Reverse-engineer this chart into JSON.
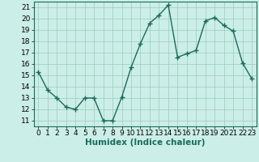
{
  "x": [
    0,
    1,
    2,
    3,
    4,
    5,
    6,
    7,
    8,
    9,
    10,
    11,
    12,
    13,
    14,
    15,
    16,
    17,
    18,
    19,
    20,
    21,
    22,
    23
  ],
  "y": [
    15.3,
    13.7,
    13.0,
    12.2,
    12.0,
    13.0,
    13.0,
    11.0,
    11.0,
    13.1,
    15.7,
    17.8,
    19.6,
    20.3,
    21.2,
    16.6,
    16.9,
    17.2,
    19.8,
    20.1,
    19.4,
    18.9,
    16.1,
    14.7
  ],
  "line_color": "#1a6b5a",
  "marker": "+",
  "marker_size": 4,
  "linewidth": 1.0,
  "bg_color": "#cceee8",
  "grid_color": "#99ccbb",
  "xlabel": "Humidex (Indice chaleur)",
  "xlim": [
    -0.5,
    23.5
  ],
  "ylim": [
    10.5,
    21.5
  ],
  "yticks": [
    11,
    12,
    13,
    14,
    15,
    16,
    17,
    18,
    19,
    20,
    21
  ],
  "xticks": [
    0,
    1,
    2,
    3,
    4,
    5,
    6,
    7,
    8,
    9,
    10,
    11,
    12,
    13,
    14,
    15,
    16,
    17,
    18,
    19,
    20,
    21,
    22,
    23
  ],
  "xlabel_fontsize": 7.5,
  "tick_fontsize": 6.5
}
